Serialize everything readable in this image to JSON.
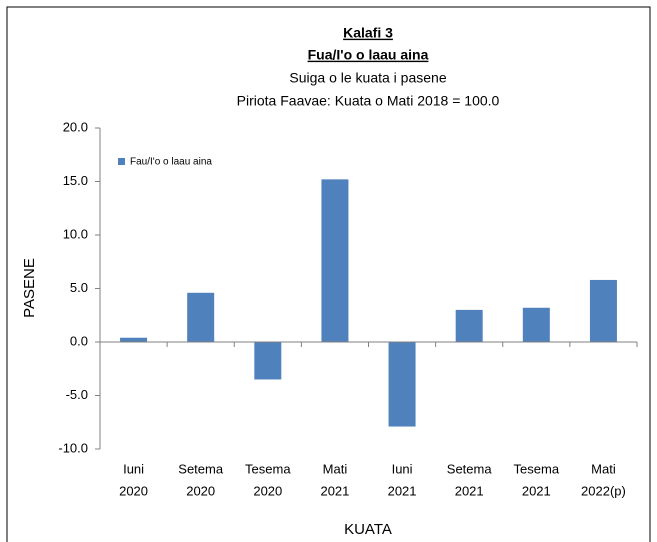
{
  "chart_data": {
    "type": "bar",
    "title": "Kalafi 3",
    "subtitle": "Fua/I'o o laau aina",
    "subtitle2": "Suiga o le kuata i pasene",
    "subtitle3": "Piriota Faavae: Kuata o Mati 2018 = 100.0",
    "y_label": "PASENE",
    "x_label": "KUATA",
    "categories": [
      [
        "Iuni",
        "2020"
      ],
      [
        "Setema",
        "2020"
      ],
      [
        "Tesema",
        "2020"
      ],
      [
        "Mati",
        "2021"
      ],
      [
        "Iuni",
        "2021"
      ],
      [
        "Setema",
        "2021"
      ],
      [
        "Tesema",
        "2021"
      ],
      [
        "Mati",
        "2022(p)"
      ]
    ],
    "series": [
      {
        "name": "Fau/I'o o laau aina",
        "color": "#4f81bd",
        "values": [
          0.4,
          4.6,
          -3.5,
          15.2,
          -7.9,
          3.0,
          3.2,
          5.8
        ]
      }
    ],
    "ylim": [
      -10,
      20
    ],
    "yticks": [
      {
        "value": -10,
        "label": "-10.0"
      },
      {
        "value": -5,
        "label": "-5.0"
      },
      {
        "value": 0,
        "label": "0.0"
      },
      {
        "value": 5,
        "label": "5.0"
      },
      {
        "value": 10,
        "label": "10.0"
      },
      {
        "value": 15,
        "label": "15.0"
      },
      {
        "value": 20,
        "label": "20.0"
      }
    ],
    "legend": "upper-left"
  }
}
